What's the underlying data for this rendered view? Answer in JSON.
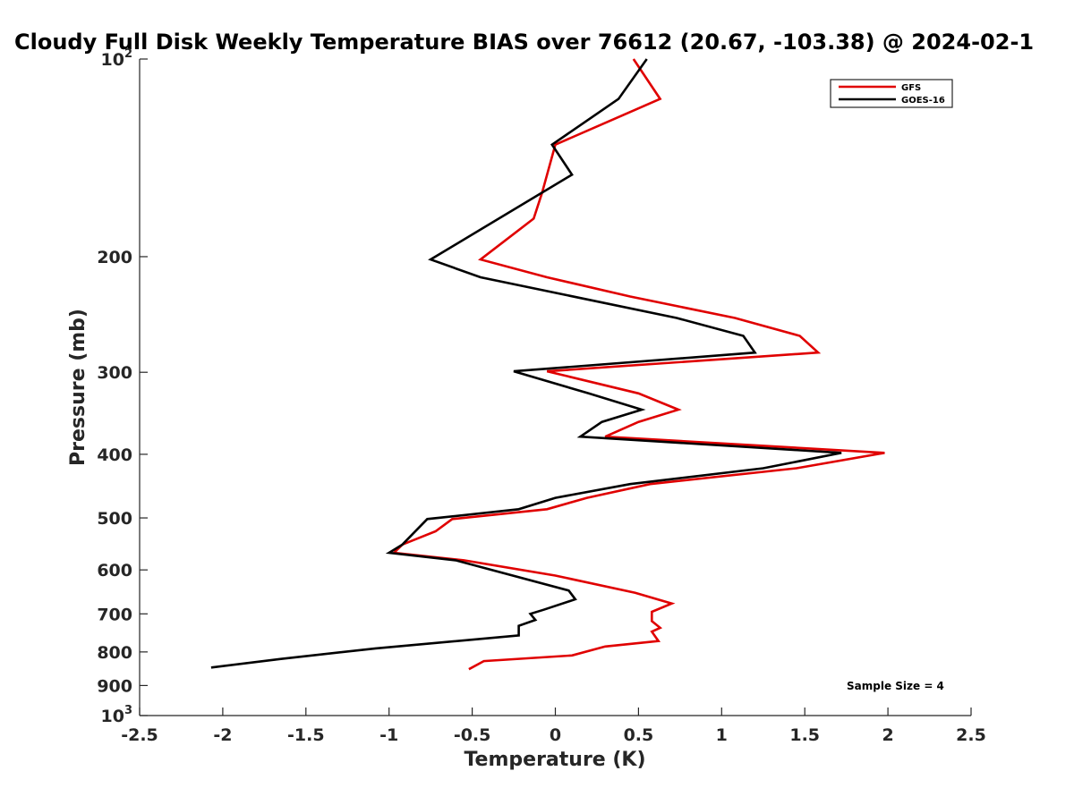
{
  "chart_data": {
    "type": "line",
    "title": "Cloudy Full Disk Weekly Temperature BIAS over 76612 (20.67, -103.38) @ 2024-02-1",
    "xlabel": "Temperature (K)",
    "ylabel": "Pressure (mb)",
    "xlim": [
      -2.5,
      2.5
    ],
    "ylim": [
      1000,
      100
    ],
    "y_scale": "log",
    "y_reversed": true,
    "xticks": [
      "-2.5",
      "-2",
      "-1.5",
      "-1",
      "-0.5",
      "0",
      "0.5",
      "1",
      "1.5",
      "2",
      "2.5"
    ],
    "xtick_values": [
      -2.5,
      -2,
      -1.5,
      -1,
      -0.5,
      0,
      0.5,
      1,
      1.5,
      2,
      2.5
    ],
    "yticks": [
      {
        "value": 100,
        "base": "10",
        "exp": "2"
      },
      {
        "value": 200,
        "label": "200"
      },
      {
        "value": 300,
        "label": "300"
      },
      {
        "value": 400,
        "label": "400"
      },
      {
        "value": 500,
        "label": "500"
      },
      {
        "value": 600,
        "label": "600"
      },
      {
        "value": 700,
        "label": "700"
      },
      {
        "value": 800,
        "label": "800"
      },
      {
        "value": 900,
        "label": "900"
      },
      {
        "value": 1000,
        "base": "10",
        "exp": "3"
      }
    ],
    "grid": false,
    "legend_position": "top-right",
    "annotation": "Sample Size = 4",
    "series": [
      {
        "name": "GFS",
        "color": "#e00000",
        "points": [
          [
            0.47,
            100
          ],
          [
            0.63,
            115
          ],
          [
            0.0,
            135
          ],
          [
            -0.08,
            160
          ],
          [
            -0.13,
            175
          ],
          [
            -0.45,
            202
          ],
          [
            -0.05,
            215
          ],
          [
            0.45,
            230
          ],
          [
            1.08,
            248
          ],
          [
            1.47,
            264
          ],
          [
            1.58,
            280
          ],
          [
            -0.05,
            299
          ],
          [
            0.5,
            323
          ],
          [
            0.74,
            342
          ],
          [
            0.5,
            357
          ],
          [
            0.3,
            376
          ],
          [
            1.98,
            398
          ],
          [
            1.45,
            420
          ],
          [
            0.57,
            444
          ],
          [
            0.19,
            466
          ],
          [
            -0.05,
            485
          ],
          [
            -0.62,
            502
          ],
          [
            -0.72,
            524
          ],
          [
            -0.92,
            549
          ],
          [
            -0.97,
            565
          ],
          [
            -0.55,
            580
          ],
          [
            0.0,
            612
          ],
          [
            0.48,
            650
          ],
          [
            0.7,
            675
          ],
          [
            0.58,
            695
          ],
          [
            0.58,
            718
          ],
          [
            0.63,
            735
          ],
          [
            0.58,
            745
          ],
          [
            0.62,
            770
          ],
          [
            0.3,
            785
          ],
          [
            0.1,
            810
          ],
          [
            -0.43,
            826
          ],
          [
            -0.52,
            850
          ]
        ]
      },
      {
        "name": "GOES-16",
        "color": "#000000",
        "points": [
          [
            0.55,
            100
          ],
          [
            0.38,
            115
          ],
          [
            -0.02,
            135
          ],
          [
            0.1,
            150
          ],
          [
            -0.75,
            202
          ],
          [
            -0.45,
            215
          ],
          [
            0.73,
            248
          ],
          [
            1.13,
            264
          ],
          [
            1.2,
            280
          ],
          [
            -0.25,
            299
          ],
          [
            0.2,
            323
          ],
          [
            0.52,
            342
          ],
          [
            0.28,
            357
          ],
          [
            0.15,
            376
          ],
          [
            1.72,
            398
          ],
          [
            1.25,
            420
          ],
          [
            0.45,
            444
          ],
          [
            0.0,
            466
          ],
          [
            -0.22,
            485
          ],
          [
            -0.77,
            502
          ],
          [
            -0.92,
            549
          ],
          [
            -1.0,
            565
          ],
          [
            -0.6,
            580
          ],
          [
            0.08,
            645
          ],
          [
            0.12,
            665
          ],
          [
            -0.07,
            690
          ],
          [
            -0.15,
            700
          ],
          [
            -0.12,
            715
          ],
          [
            -0.22,
            730
          ],
          [
            -0.22,
            755
          ],
          [
            -1.08,
            790
          ],
          [
            -1.65,
            820
          ],
          [
            -2.07,
            845
          ]
        ]
      }
    ]
  }
}
